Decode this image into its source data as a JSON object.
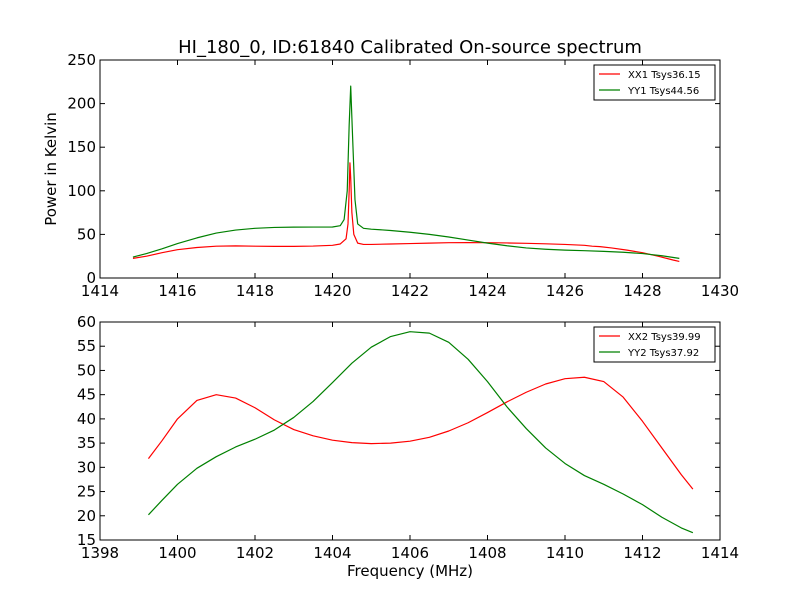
{
  "figure": {
    "title": "HI_180_0, ID:61840 Calibrated On-source spectrum"
  },
  "chart_data": [
    {
      "type": "line",
      "title": "HI_180_0, ID:61840 Calibrated On-source spectrum",
      "xlabel": "",
      "ylabel": "Power in Kelvin",
      "xlim": [
        1414,
        1430
      ],
      "ylim": [
        0,
        250
      ],
      "xticks": [
        1414,
        1416,
        1418,
        1420,
        1422,
        1424,
        1426,
        1428,
        1430
      ],
      "yticks": [
        0,
        50,
        100,
        150,
        200,
        250
      ],
      "grid": false,
      "legend": "top-right",
      "series": [
        {
          "name": "XX1 Tsys36.15",
          "color": "#ff0000",
          "x": [
            1414.85,
            1415.2,
            1415.6,
            1416.0,
            1416.5,
            1417.0,
            1417.5,
            1418.0,
            1418.5,
            1419.0,
            1419.5,
            1420.0,
            1420.2,
            1420.35,
            1420.4,
            1420.43,
            1420.45,
            1420.47,
            1420.5,
            1420.55,
            1420.65,
            1420.8,
            1421.0,
            1421.5,
            1422.0,
            1422.5,
            1423.0,
            1423.5,
            1424.0,
            1424.5,
            1425.0,
            1425.5,
            1426.0,
            1426.5,
            1426.7,
            1426.9,
            1427.2,
            1427.6,
            1428.0,
            1428.4,
            1428.8,
            1428.95
          ],
          "y": [
            22.5,
            25,
            29,
            32.5,
            35,
            36.5,
            36.8,
            36.5,
            36.3,
            36.3,
            36.6,
            37.5,
            39,
            45,
            62,
            100,
            132,
            115,
            75,
            50,
            40,
            38.5,
            38.5,
            39,
            39.5,
            40,
            40.5,
            40.6,
            40.5,
            40.2,
            39.8,
            39.2,
            38.5,
            37.5,
            36.5,
            36,
            34.5,
            32,
            29,
            25,
            20.5,
            19
          ]
        },
        {
          "name": "YY1 Tsys44.56",
          "color": "#008000",
          "x": [
            1414.85,
            1415.2,
            1415.6,
            1416.0,
            1416.5,
            1417.0,
            1417.5,
            1418.0,
            1418.5,
            1419.0,
            1419.5,
            1420.0,
            1420.2,
            1420.3,
            1420.38,
            1420.43,
            1420.47,
            1420.52,
            1420.58,
            1420.65,
            1420.8,
            1421.0,
            1421.5,
            1422.0,
            1422.5,
            1423.0,
            1423.5,
            1424.0,
            1424.5,
            1425.0,
            1425.5,
            1426.0,
            1426.5,
            1427.0,
            1427.5,
            1428.0,
            1428.5,
            1428.95
          ],
          "y": [
            24,
            28,
            33.5,
            39.5,
            46,
            51.5,
            55,
            57,
            58,
            58.3,
            58.4,
            58.5,
            60,
            67,
            100,
            175,
            220,
            160,
            90,
            62,
            57,
            56,
            54.5,
            52.5,
            50,
            47,
            43.5,
            40,
            37,
            34.5,
            33,
            32,
            31.3,
            30.5,
            29.5,
            28,
            25.5,
            22.5
          ]
        }
      ]
    },
    {
      "type": "line",
      "title": "",
      "xlabel": "Frequency (MHz)",
      "ylabel": "",
      "xlim": [
        1398,
        1414
      ],
      "ylim": [
        15,
        60
      ],
      "xticks": [
        1398,
        1400,
        1402,
        1404,
        1406,
        1408,
        1410,
        1412,
        1414
      ],
      "yticks": [
        15,
        20,
        25,
        30,
        35,
        40,
        45,
        50,
        55,
        60
      ],
      "grid": false,
      "legend": "top-right",
      "series": [
        {
          "name": "XX2 Tsys39.99",
          "color": "#ff0000",
          "x": [
            1399.25,
            1399.6,
            1400.0,
            1400.5,
            1401.0,
            1401.5,
            1402.0,
            1402.5,
            1403.0,
            1403.5,
            1404.0,
            1404.5,
            1405.0,
            1405.5,
            1406.0,
            1406.5,
            1407.0,
            1407.5,
            1408.0,
            1408.5,
            1409.0,
            1409.5,
            1410.0,
            1410.5,
            1411.0,
            1411.5,
            1412.0,
            1412.5,
            1413.0,
            1413.3
          ],
          "y": [
            31.8,
            35.5,
            40,
            43.8,
            45,
            44.3,
            42.3,
            39.8,
            37.8,
            36.5,
            35.6,
            35.1,
            34.9,
            35.0,
            35.4,
            36.2,
            37.5,
            39.2,
            41.3,
            43.5,
            45.5,
            47.2,
            48.3,
            48.6,
            47.7,
            44.5,
            39.5,
            34,
            28.5,
            25.5
          ]
        },
        {
          "name": "YY2 Tsys37.92",
          "color": "#008000",
          "x": [
            1399.25,
            1399.6,
            1400.0,
            1400.5,
            1401.0,
            1401.5,
            1402.0,
            1402.5,
            1403.0,
            1403.5,
            1404.0,
            1404.5,
            1405.0,
            1405.5,
            1406.0,
            1406.5,
            1407.0,
            1407.5,
            1408.0,
            1408.5,
            1409.0,
            1409.5,
            1410.0,
            1410.5,
            1411.0,
            1411.5,
            1412.0,
            1412.5,
            1413.0,
            1413.3
          ],
          "y": [
            20.2,
            23.2,
            26.5,
            29.8,
            32.2,
            34.2,
            35.8,
            37.7,
            40.3,
            43.6,
            47.5,
            51.5,
            54.8,
            57.0,
            58.0,
            57.7,
            55.8,
            52.3,
            47.7,
            42.5,
            38.0,
            34.0,
            30.8,
            28.3,
            26.5,
            24.5,
            22.3,
            19.7,
            17.5,
            16.5
          ]
        }
      ]
    }
  ]
}
